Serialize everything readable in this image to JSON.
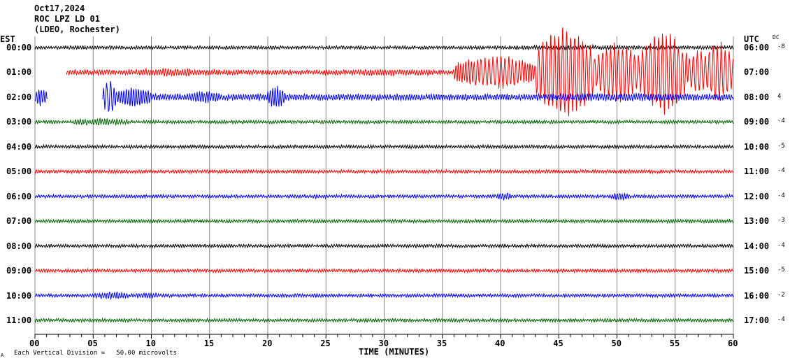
{
  "header": {
    "date": "Oct17,2024",
    "station": "ROC LPZ LD 01",
    "network": "(LDEO, Rochester)"
  },
  "chart_data": {
    "type": "line",
    "title": "ROC LPZ LD 01 helicorder",
    "xlabel": "TIME (MINUTES)",
    "xlim": [
      0,
      60
    ],
    "x_ticks": [
      "00",
      "05",
      "10",
      "15",
      "20",
      "25",
      "30",
      "35",
      "40",
      "45",
      "50",
      "55",
      "60"
    ],
    "left_axis_label": "EST",
    "right_axis_label": "UTC",
    "dc_label": "DC",
    "rows": [
      {
        "est": "00:00",
        "utc": "06:00",
        "dc": "-8",
        "color": "#000000",
        "start": 0,
        "base": 2,
        "events": [
          [
            35,
            60,
            3
          ]
        ]
      },
      {
        "est": "01:00",
        "utc": "07:00",
        "dc": "",
        "color": "#ff0000",
        "start": 2.7,
        "base": 3,
        "events": [
          [
            7,
            17,
            6
          ],
          [
            25,
            36,
            5
          ],
          [
            36,
            43,
            30
          ],
          [
            43,
            48,
            85
          ],
          [
            48,
            52,
            55
          ],
          [
            52,
            56,
            75
          ],
          [
            56,
            58,
            40
          ],
          [
            57.5,
            60,
            55
          ]
        ]
      },
      {
        "est": "02:00",
        "utc": "08:00",
        "dc": "4",
        "color": "#0000ff",
        "start": 0,
        "gap": [
          1.1,
          5.8
        ],
        "base": 4,
        "events": [
          [
            0,
            1,
            16
          ],
          [
            5.8,
            7,
            30
          ],
          [
            7,
            10,
            18
          ],
          [
            13,
            16,
            10
          ],
          [
            20,
            21.5,
            20
          ],
          [
            40,
            60,
            6
          ]
        ]
      },
      {
        "est": "03:00",
        "utc": "09:00",
        "dc": "-4",
        "color": "#006400",
        "start": 0,
        "base": 2,
        "events": [
          [
            3,
            8,
            6
          ]
        ]
      },
      {
        "est": "04:00",
        "utc": "10:00",
        "dc": "-5",
        "color": "#000000",
        "start": 0,
        "base": 2,
        "events": []
      },
      {
        "est": "05:00",
        "utc": "11:00",
        "dc": "-4",
        "color": "#ff0000",
        "start": 0,
        "base": 2,
        "events": []
      },
      {
        "est": "06:00",
        "utc": "12:00",
        "dc": "-4",
        "color": "#0000ff",
        "start": 0,
        "base": 2,
        "events": [
          [
            22,
            26,
            3
          ],
          [
            39.5,
            41,
            6
          ],
          [
            49.5,
            51,
            7
          ]
        ]
      },
      {
        "est": "07:00",
        "utc": "13:00",
        "dc": "-3",
        "color": "#006400",
        "start": 0,
        "base": 2,
        "events": []
      },
      {
        "est": "08:00",
        "utc": "14:00",
        "dc": "-4",
        "color": "#000000",
        "start": 0,
        "base": 2,
        "events": []
      },
      {
        "est": "09:00",
        "utc": "15:00",
        "dc": "-5",
        "color": "#ff0000",
        "start": 0,
        "base": 2,
        "events": []
      },
      {
        "est": "10:00",
        "utc": "16:00",
        "dc": "-2",
        "color": "#0000ff",
        "start": 0,
        "base": 2,
        "events": [
          [
            5,
            8,
            6
          ],
          [
            8,
            11,
            4
          ]
        ]
      },
      {
        "est": "11:00",
        "utc": "17:00",
        "dc": "-4",
        "color": "#006400",
        "start": 0,
        "base": 2,
        "events": []
      }
    ]
  },
  "footer": {
    "scale_note": "Each Vertical Division =   50.00 microvolts",
    "mark": "A"
  }
}
